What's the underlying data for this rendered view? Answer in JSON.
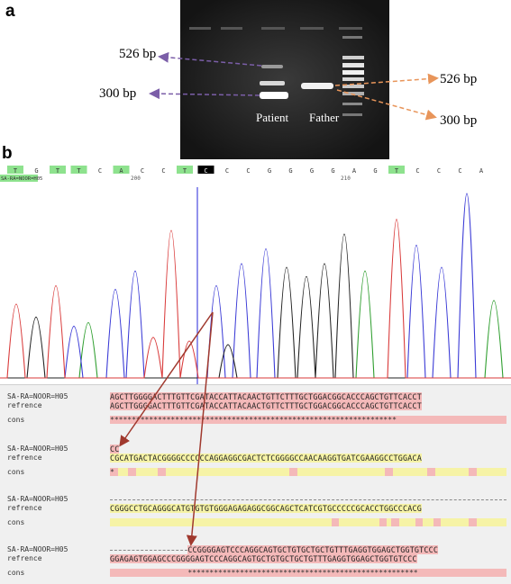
{
  "panels": {
    "a": "a",
    "b": "b"
  },
  "gel": {
    "lanes": {
      "patient": "Patient",
      "father": "Father"
    },
    "left_labels": {
      "upper": "526 bp",
      "lower": "300 bp"
    },
    "right_labels": {
      "upper": "526 bp",
      "lower": "300 bp"
    }
  },
  "chromatogram": {
    "sample_tag": "SA-RA=NOOR=H05",
    "position_labels": {
      "left": "200",
      "right": "210"
    },
    "bases": [
      "T",
      "G",
      "T",
      "T",
      "C",
      "A",
      "C",
      "C",
      "T",
      "C",
      "C",
      "C",
      "G",
      "G",
      "G",
      "G",
      "A",
      "G",
      "T",
      "C",
      "C",
      "C",
      "A"
    ],
    "highlight_index": 9
  },
  "alignment": {
    "blocks": [
      {
        "sample_name": "SA-RA=NOOR=H05",
        "ref_name": "refrence",
        "cons_name": "cons",
        "sample_seq": "AGCTTGGGGACTTTGTTCGATACCATTACAACTGTTCTTTGCTGGACGGCACCCAGCTGTTCACCT",
        "ref_seq": "AGCTTGGGGACTTTGTTCGATACCATTACAACTGTTCTTTGCTGGACGGCACCCAGCTGTTCACCT",
        "cons_text": "******************************************************************"
      },
      {
        "sample_name": "SA-RA=NOOR=H05",
        "ref_name": "refrence",
        "cons_name": "cons",
        "sample_seq": "CC",
        "ref_seq": "CGCATGACTACGGGGCCCCCCAGGAGGCGACTCTCGGGGCCAACAAGGTGATCGAAGGCCTGGACA",
        "cons_text": "*"
      },
      {
        "sample_name": "SA-RA=NOOR=H05",
        "ref_name": "refrence",
        "cons_name": "cons",
        "sample_seq": "",
        "ref_seq": "CGGGCCTGCAGGGCATGTGTGTGGGAGAGAGGCGGCAGCTCATCGTGCCCCCGCACCTGGCCCACG",
        "cons_text": ""
      },
      {
        "sample_name": "SA-RA=NOOR=H05",
        "ref_name": "refrence",
        "cons_name": "cons",
        "sample_seq": "CCGGGGAGTCCCAGGCAGTGCTGTGCTGCTGTTTGAGGTGGAGCTGGTGTCCC",
        "ref_seq": "GGAGAGTGGAGCCCGGGGAGTCCCAGGCAGTGCTGTGCTGCTGTTTGAGGTGGAGCTGGTGTCCC",
        "cons_text": "*****************************************************"
      }
    ]
  },
  "colors": {
    "A": "#2e9e2e",
    "C": "#3a3ad6",
    "G": "#222222",
    "T": "#d93a3a",
    "pink": "#f4b9b9",
    "yellow": "#f6f3a6",
    "arrow": "#a0392e",
    "purple_dash": "#7b5ea8",
    "orange_dash": "#e8955a"
  }
}
